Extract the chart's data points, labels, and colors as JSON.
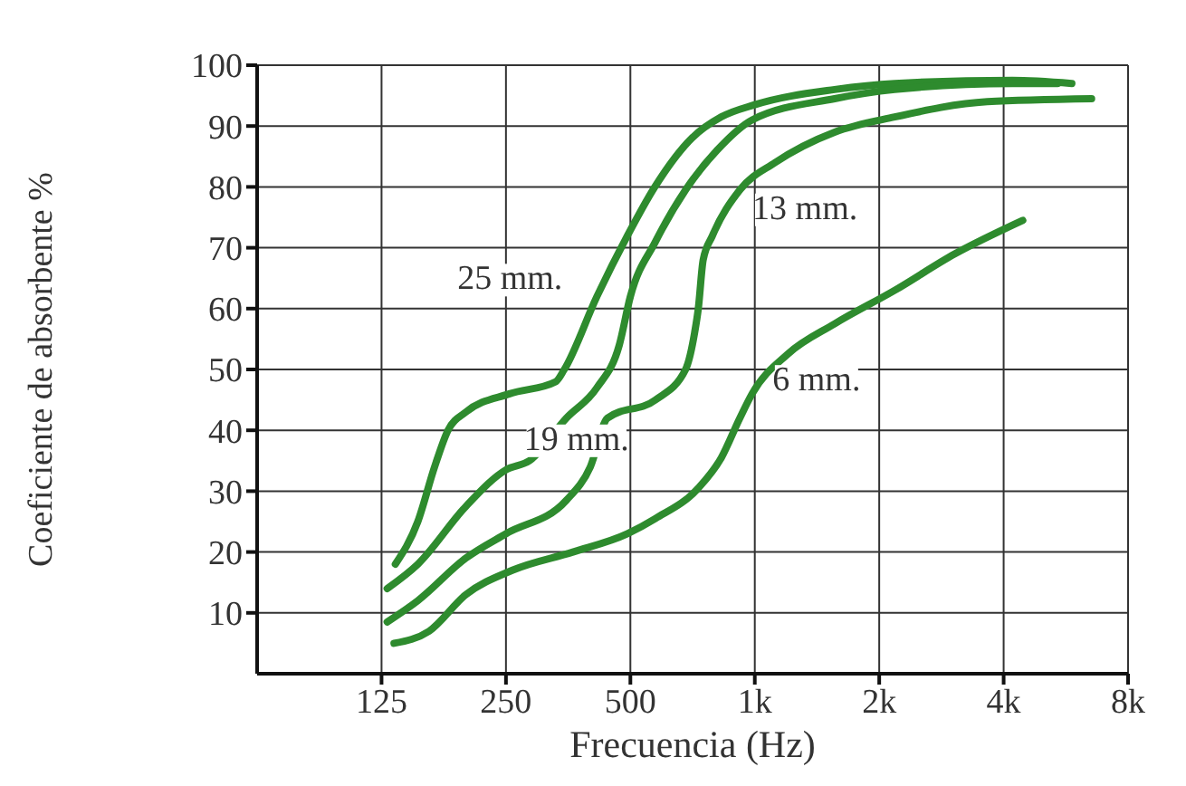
{
  "chart_data": {
    "type": "line",
    "xlabel": "Frecuencia (Hz)",
    "ylabel": "Coeficiente de absorbente %",
    "log": "x",
    "xlim": [
      62.5,
      8000
    ],
    "xticks": [
      {
        "value": 125,
        "label": "125"
      },
      {
        "value": 250,
        "label": "250"
      },
      {
        "value": 500,
        "label": "500"
      },
      {
        "value": 1000,
        "label": "1k"
      },
      {
        "value": 2000,
        "label": "2k"
      },
      {
        "value": 4000,
        "label": "4k"
      },
      {
        "value": 8000,
        "label": "8k"
      }
    ],
    "ylim": [
      0,
      100
    ],
    "yticks": [
      10,
      20,
      30,
      40,
      50,
      60,
      70,
      80,
      90,
      100
    ],
    "grid": true,
    "legend": false,
    "marker": "none",
    "line_style": "solid",
    "series": [
      {
        "name": "25 mm.",
        "color": "#2e8b2e",
        "x": [
          135,
          153,
          168,
          181,
          200,
          255,
          330,
          346,
          415,
          492,
          573,
          704,
          830,
          1000,
          1560,
          2180,
          4200,
          5850
        ],
        "values": [
          18,
          25,
          34,
          40,
          43,
          46,
          48,
          50,
          62,
          72,
          80,
          88,
          91.5,
          93.5,
          96,
          97,
          97.5,
          97
        ]
      },
      {
        "name": "19 mm.",
        "color": "#2e8b2e",
        "x": [
          129,
          153,
          200,
          250,
          285,
          350,
          415,
          470,
          500,
          575,
          680,
          810,
          985,
          1560,
          2180,
          4200,
          5400
        ],
        "values": [
          14,
          18,
          27.5,
          33.5,
          35,
          42,
          47,
          54,
          62,
          71,
          79.5,
          86,
          91,
          94.5,
          96,
          97,
          97
        ]
      },
      {
        "name": "13 mm.",
        "color": "#2e8b2e",
        "x": [
          129,
          153,
          200,
          250,
          350,
          400,
          440,
          575,
          680,
          715,
          730,
          750,
          790,
          920,
          1120,
          1560,
          2180,
          3650,
          6530
        ],
        "values": [
          8.5,
          12,
          19,
          23,
          28.5,
          34,
          42,
          45,
          50,
          56,
          60,
          68,
          72,
          79.5,
          84,
          89,
          91.5,
          94,
          94.5
        ]
      },
      {
        "name": "6 mm.",
        "color": "#2e8b2e",
        "x": [
          134,
          163,
          200,
          259,
          363,
          492,
          575,
          730,
          830,
          920,
          985,
          1200,
          1560,
          2180,
          3050,
          4450
        ],
        "values": [
          5,
          7,
          13,
          17,
          20,
          23,
          25.5,
          30.5,
          35.5,
          42,
          46,
          52.5,
          57.5,
          63,
          69,
          74.5
        ]
      }
    ]
  }
}
